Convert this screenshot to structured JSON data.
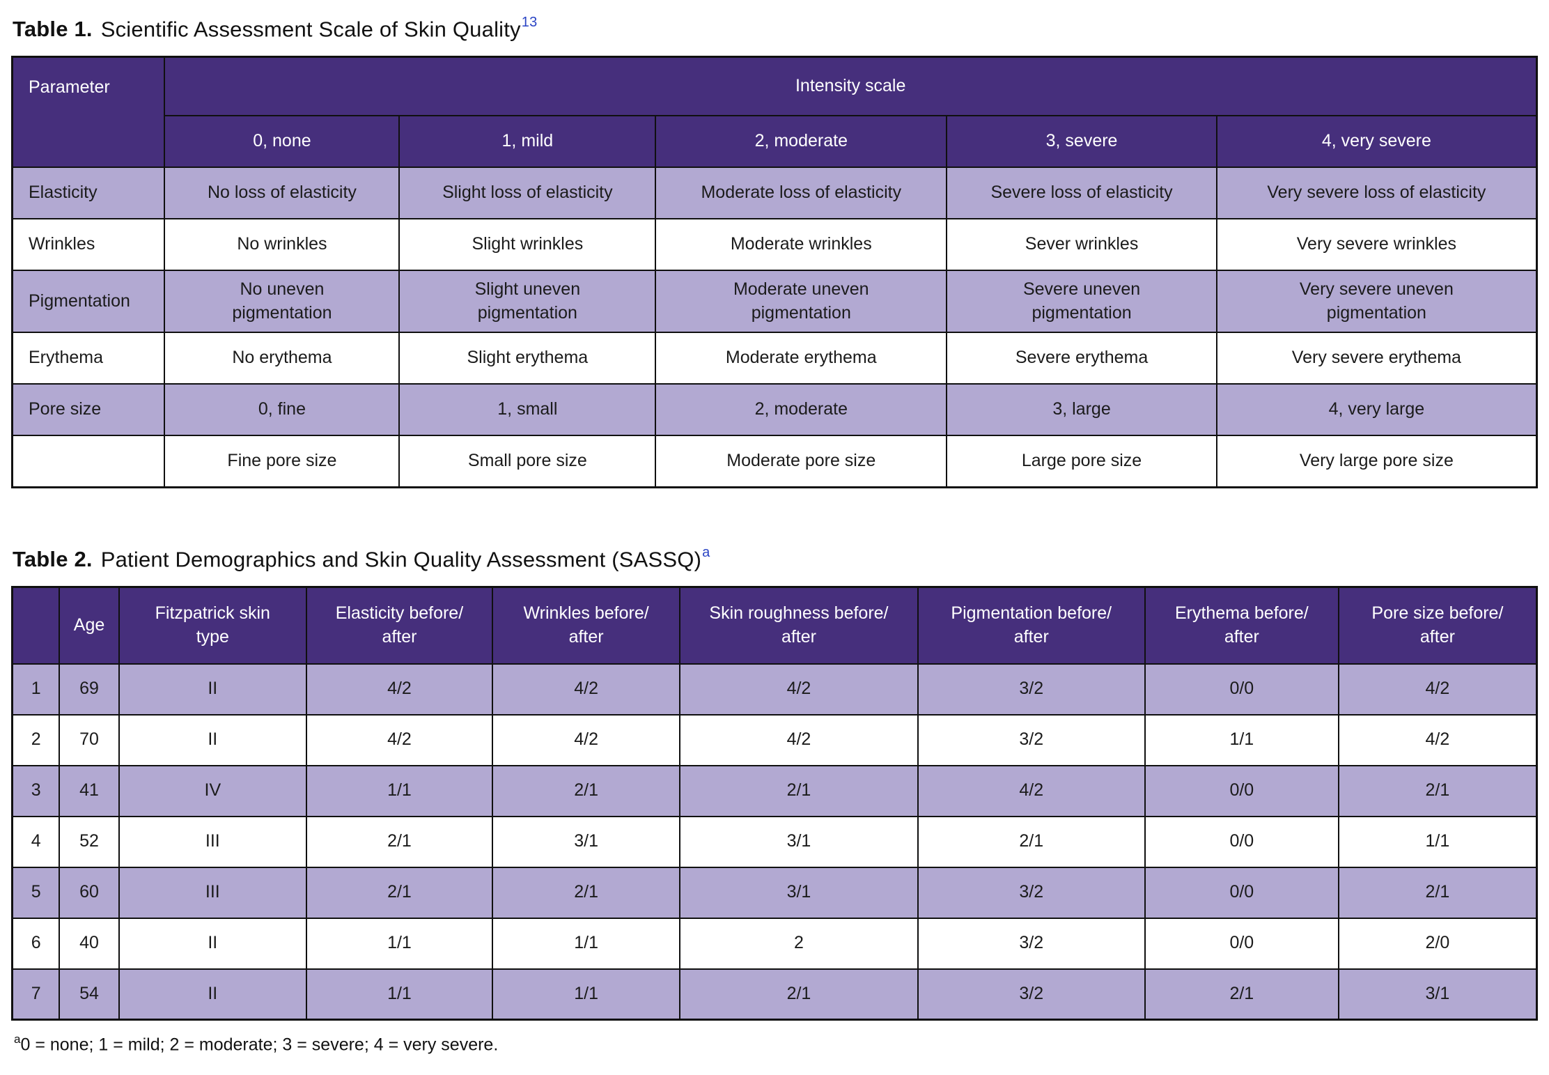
{
  "colors": {
    "header_bg": "#462f7c",
    "shaded_row_bg": "#b2a9d2",
    "plain_row_bg": "#ffffff",
    "border": "#101010",
    "header_text": "#ffffff",
    "body_text": "#1b1b1b",
    "superscript_blue": "#2a44c4"
  },
  "table1": {
    "title_label": "Table 1.",
    "title": "Scientific Assessment Scale of Skin Quality",
    "title_superscript": "13",
    "corner_header": "Parameter",
    "group_header": "Intensity scale",
    "columns": [
      "0, none",
      "1, mild",
      "2, moderate",
      "3, severe",
      "4, very severe"
    ],
    "rows": [
      {
        "parameter": "Elasticity",
        "cells": [
          "No loss of elasticity",
          "Slight loss of elasticity",
          "Moderate loss of elasticity",
          "Severe loss of elasticity",
          "Very severe loss of elasticity"
        ]
      },
      {
        "parameter": "Wrinkles",
        "cells": [
          "No wrinkles",
          "Slight wrinkles",
          "Moderate wrinkles",
          "Sever wrinkles",
          "Very severe wrinkles"
        ]
      },
      {
        "parameter": "Pigmentation",
        "cells": [
          "No uneven\npigmentation",
          "Slight uneven\npigmentation",
          "Moderate uneven\npigmentation",
          "Severe uneven\npigmentation",
          "Very severe uneven\npigmentation"
        ]
      },
      {
        "parameter": "Erythema",
        "cells": [
          "No erythema",
          "Slight erythema",
          "Moderate erythema",
          "Severe erythema",
          "Very severe erythema"
        ]
      },
      {
        "parameter": "Pore size",
        "cells": [
          "0, fine",
          "1, small",
          "2, moderate",
          "3, large",
          "4, very large"
        ]
      },
      {
        "parameter": "",
        "cells": [
          "Fine pore size",
          "Small pore size",
          "Moderate pore size",
          "Large pore size",
          "Very large pore size"
        ]
      }
    ]
  },
  "table2": {
    "title_label": "Table 2.",
    "title": "Patient Demographics and Skin Quality Assessment (SASSQ)",
    "title_superscript": "a",
    "columns": [
      "",
      "Age",
      "Fitzpatrick skin\ntype",
      "Elasticity before/\nafter",
      "Wrinkles before/\nafter",
      "Skin roughness before/\nafter",
      "Pigmentation before/\nafter",
      "Erythema before/\nafter",
      "Pore size before/\nafter"
    ],
    "rows": [
      [
        "1",
        "69",
        "II",
        "4/2",
        "4/2",
        "4/2",
        "3/2",
        "0/0",
        "4/2"
      ],
      [
        "2",
        "70",
        "II",
        "4/2",
        "4/2",
        "4/2",
        "3/2",
        "1/1",
        "4/2"
      ],
      [
        "3",
        "41",
        "IV",
        "1/1",
        "2/1",
        "2/1",
        "4/2",
        "0/0",
        "2/1"
      ],
      [
        "4",
        "52",
        "III",
        "2/1",
        "3/1",
        "3/1",
        "2/1",
        "0/0",
        "1/1"
      ],
      [
        "5",
        "60",
        "III",
        "2/1",
        "2/1",
        "3/1",
        "3/2",
        "0/0",
        "2/1"
      ],
      [
        "6",
        "40",
        "II",
        "1/1",
        "1/1",
        "2",
        "3/2",
        "0/0",
        "2/0"
      ],
      [
        "7",
        "54",
        "II",
        "1/1",
        "1/1",
        "2/1",
        "3/2",
        "2/1",
        "3/1"
      ]
    ],
    "footnote_superscript": "a",
    "footnote": "0 = none; 1 = mild; 2 = moderate; 3 = severe; 4 = very severe."
  }
}
